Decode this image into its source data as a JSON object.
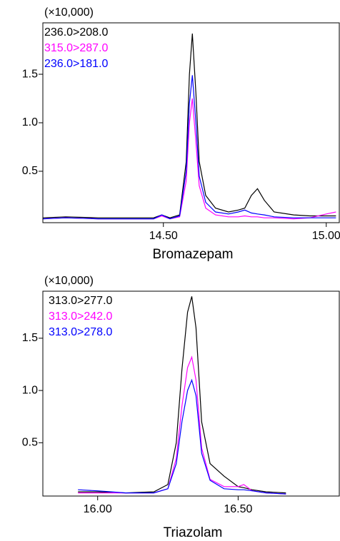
{
  "chart_data": [
    {
      "type": "line",
      "y_multiplier": "(×10,000)",
      "xlabel": "Bromazepam",
      "x": [
        14.13,
        14.2,
        14.3,
        14.4,
        14.47,
        14.495,
        14.52,
        14.55,
        14.57,
        14.58,
        14.589,
        14.6,
        14.61,
        14.63,
        14.66,
        14.7,
        14.73,
        14.75,
        14.77,
        14.789,
        14.81,
        14.84,
        14.9,
        14.95,
        15.0,
        15.03
      ],
      "series": [
        {
          "name": "236.0>208.0",
          "color": "#000000",
          "values": [
            0.02,
            0.03,
            0.02,
            0.02,
            0.02,
            0.05,
            0.02,
            0.05,
            0.6,
            1.5,
            1.92,
            1.3,
            0.6,
            0.25,
            0.12,
            0.08,
            0.1,
            0.12,
            0.25,
            0.32,
            0.2,
            0.08,
            0.05,
            0.04,
            0.04,
            0.04
          ]
        },
        {
          "name": "315.0>287.0",
          "color": "#ff00ff",
          "values": [
            0.01,
            0.02,
            0.01,
            0.01,
            0.01,
            0.04,
            0.01,
            0.03,
            0.4,
            1.0,
            1.25,
            0.8,
            0.35,
            0.12,
            0.05,
            0.03,
            0.03,
            0.04,
            0.03,
            0.03,
            0.02,
            0.02,
            0.01,
            0.02,
            0.06,
            0.08
          ]
        },
        {
          "name": "236.0>181.0",
          "color": "#0000ff",
          "values": [
            0.01,
            0.02,
            0.01,
            0.01,
            0.01,
            0.05,
            0.01,
            0.04,
            0.5,
            1.2,
            1.49,
            1.0,
            0.45,
            0.18,
            0.08,
            0.06,
            0.08,
            0.1,
            0.07,
            0.06,
            0.05,
            0.03,
            0.02,
            0.02,
            0.02,
            0.02
          ]
        }
      ],
      "xlim": [
        14.13,
        15.04
      ],
      "ylim": [
        -0.03,
        2.03
      ],
      "xticks": [
        {
          "value": 14.5,
          "label": "14.50"
        },
        {
          "value": 15.0,
          "label": "15.00"
        }
      ],
      "yticks": [
        0.5,
        {
          "value": 1.0,
          "label": "1.0"
        },
        1.5
      ]
    },
    {
      "type": "line",
      "y_multiplier": "(×10,000)",
      "xlabel": "Triazolam",
      "x": [
        15.93,
        16.0,
        16.1,
        16.2,
        16.25,
        16.28,
        16.3,
        16.32,
        16.335,
        16.35,
        16.37,
        16.4,
        16.45,
        16.5,
        16.52,
        16.55,
        16.6,
        16.67
      ],
      "series": [
        {
          "name": "313.0>277.0",
          "color": "#000000",
          "values": [
            0.03,
            0.03,
            0.02,
            0.03,
            0.1,
            0.5,
            1.2,
            1.75,
            1.9,
            1.6,
            0.7,
            0.3,
            0.18,
            0.08,
            0.07,
            0.05,
            0.03,
            0.02
          ]
        },
        {
          "name": "313.0>242.0",
          "color": "#ff00ff",
          "values": [
            0.02,
            0.02,
            0.02,
            0.02,
            0.06,
            0.35,
            0.85,
            1.22,
            1.32,
            1.1,
            0.45,
            0.15,
            0.08,
            0.08,
            0.1,
            0.04,
            0.02,
            0.01
          ]
        },
        {
          "name": "313.0>278.0",
          "color": "#0000ff",
          "values": [
            0.05,
            0.04,
            0.02,
            0.02,
            0.06,
            0.3,
            0.7,
            1.0,
            1.1,
            0.95,
            0.4,
            0.14,
            0.06,
            0.05,
            0.05,
            0.04,
            0.02,
            0.01
          ]
        }
      ],
      "xlim": [
        15.805,
        16.86
      ],
      "ylim": [
        -0.01,
        1.95
      ],
      "xticks": [
        {
          "value": 16.0,
          "label": "16.00"
        },
        {
          "value": 16.5,
          "label": "16.50"
        }
      ],
      "yticks": [
        0.5,
        {
          "value": 1.0,
          "label": "1.0"
        },
        1.5
      ]
    }
  ]
}
